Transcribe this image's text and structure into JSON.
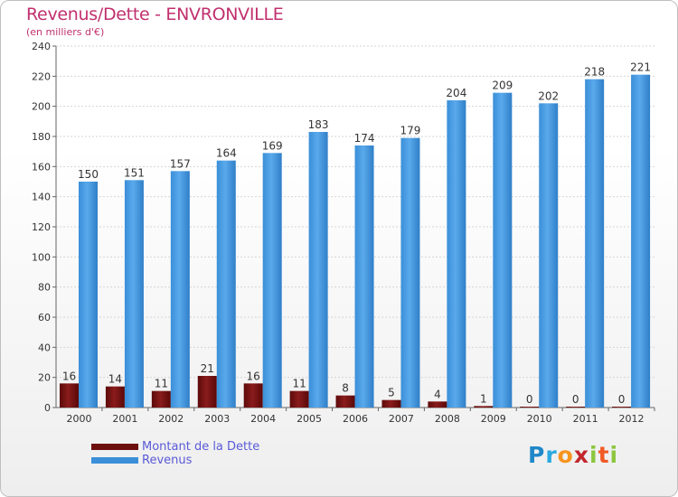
{
  "header": {
    "title": "Revenus/Dette - ENVRONVILLE",
    "subtitle": "(en milliers d'€)"
  },
  "legend": {
    "debt_label": "Montant de la Dette",
    "revenue_label": "Revenus"
  },
  "logo": {
    "text": "Proxiti",
    "letters": [
      "P",
      "r",
      "o",
      "x",
      "i",
      "t",
      "i"
    ],
    "colors": [
      "#1e88c9",
      "#2aa9e0",
      "#f7941d",
      "#c2272d",
      "#8cc63f",
      "#f15a24",
      "#8cc63f"
    ]
  },
  "chart_data": {
    "type": "bar",
    "title": "Revenus/Dette - ENVRONVILLE",
    "subtitle": "(en milliers d'€)",
    "xlabel": "",
    "ylabel": "",
    "ylim": [
      0,
      240
    ],
    "yticks": [
      0,
      20,
      40,
      60,
      80,
      100,
      120,
      140,
      160,
      180,
      200,
      220,
      240
    ],
    "grid": true,
    "legend_position": "bottom-left",
    "categories": [
      "2000",
      "2001",
      "2002",
      "2003",
      "2004",
      "2005",
      "2006",
      "2007",
      "2008",
      "2009",
      "2010",
      "2011",
      "2012"
    ],
    "series": [
      {
        "name": "Montant de la Dette",
        "color": "#6e0f0f",
        "values": [
          16,
          14,
          11,
          21,
          16,
          11,
          8,
          5,
          4,
          1,
          0,
          0,
          0
        ]
      },
      {
        "name": "Revenus",
        "color": "#3a8fd8",
        "values": [
          150,
          151,
          157,
          164,
          169,
          183,
          174,
          179,
          204,
          209,
          202,
          218,
          221
        ]
      }
    ]
  }
}
